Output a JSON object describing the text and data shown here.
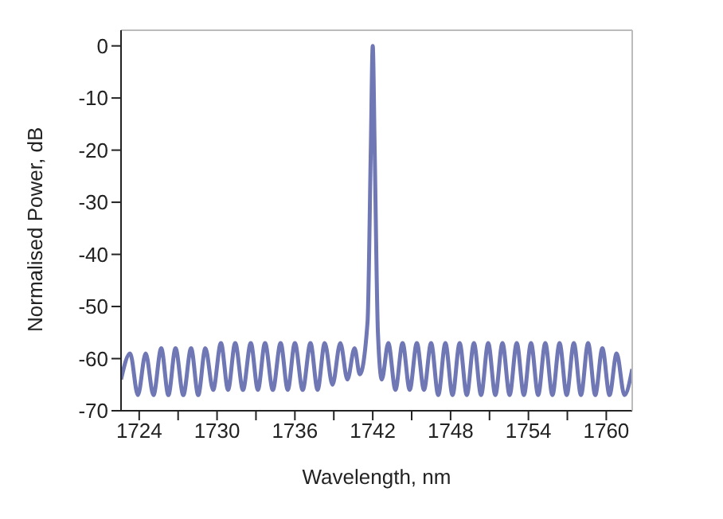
{
  "chart_data": {
    "type": "line",
    "xlabel": "Wavelength, nm",
    "ylabel": "Normalised Power, dB",
    "xlim": [
      1722.6,
      1762
    ],
    "ylim": [
      -70,
      3
    ],
    "xticks": [
      1724,
      {
        "value": 1727,
        "label": null
      },
      1730,
      {
        "value": 1733,
        "label": null
      },
      1736,
      {
        "value": 1739,
        "label": null
      },
      1742,
      {
        "value": 1745,
        "label": null
      },
      1748,
      {
        "value": 1751,
        "label": null
      },
      1754,
      {
        "value": 1757,
        "label": null
      },
      1760
    ],
    "yticks": [
      -70,
      -60,
      -50,
      -40,
      -30,
      -20,
      -10,
      0
    ],
    "legend": false,
    "marker": "none",
    "line_style": "solid",
    "series": [
      {
        "color": "#6f77b5",
        "x": [
          1722.6,
          1723.3,
          1723.9,
          1724.5,
          1725.1,
          1725.7,
          1726.25,
          1726.8,
          1727.4,
          1728.0,
          1728.55,
          1729.1,
          1729.7,
          1730.3,
          1730.85,
          1731.4,
          1732.0,
          1732.6,
          1733.15,
          1733.7,
          1734.3,
          1734.9,
          1735.45,
          1736.0,
          1736.6,
          1737.2,
          1737.75,
          1738.3,
          1738.9,
          1739.5,
          1740.05,
          1740.6,
          1741.0,
          1741.6,
          1741.85,
          1742.0,
          1742.15,
          1742.4,
          1742.7,
          1743.2,
          1743.75,
          1744.3,
          1744.85,
          1745.4,
          1745.95,
          1746.5,
          1747.05,
          1747.6,
          1748.15,
          1748.7,
          1749.25,
          1749.8,
          1750.35,
          1750.9,
          1751.45,
          1752.0,
          1752.55,
          1753.1,
          1753.65,
          1754.2,
          1754.75,
          1755.3,
          1755.85,
          1756.4,
          1756.95,
          1757.5,
          1758.05,
          1758.6,
          1759.15,
          1759.7,
          1760.25,
          1760.8,
          1761.4,
          1762
        ],
        "values": [
          -64,
          -59,
          -67,
          -59,
          -67,
          -58,
          -67,
          -58,
          -67,
          -58,
          -67,
          -58,
          -66,
          -57,
          -66,
          -57,
          -66,
          -57,
          -66,
          -57,
          -66,
          -57,
          -66,
          -57,
          -66,
          -57,
          -66,
          -57,
          -65,
          -57,
          -64,
          -58,
          -63,
          -53,
          -20,
          0,
          -20,
          -55,
          -64,
          -57,
          -66,
          -57,
          -66,
          -57,
          -66,
          -57,
          -67,
          -57,
          -67,
          -57,
          -67,
          -57,
          -67,
          -57,
          -67,
          -57,
          -67,
          -57,
          -67,
          -57,
          -67,
          -57,
          -67,
          -57,
          -67,
          -57,
          -67,
          -57,
          -67,
          -58,
          -67,
          -59,
          -67,
          -62
        ]
      }
    ]
  }
}
